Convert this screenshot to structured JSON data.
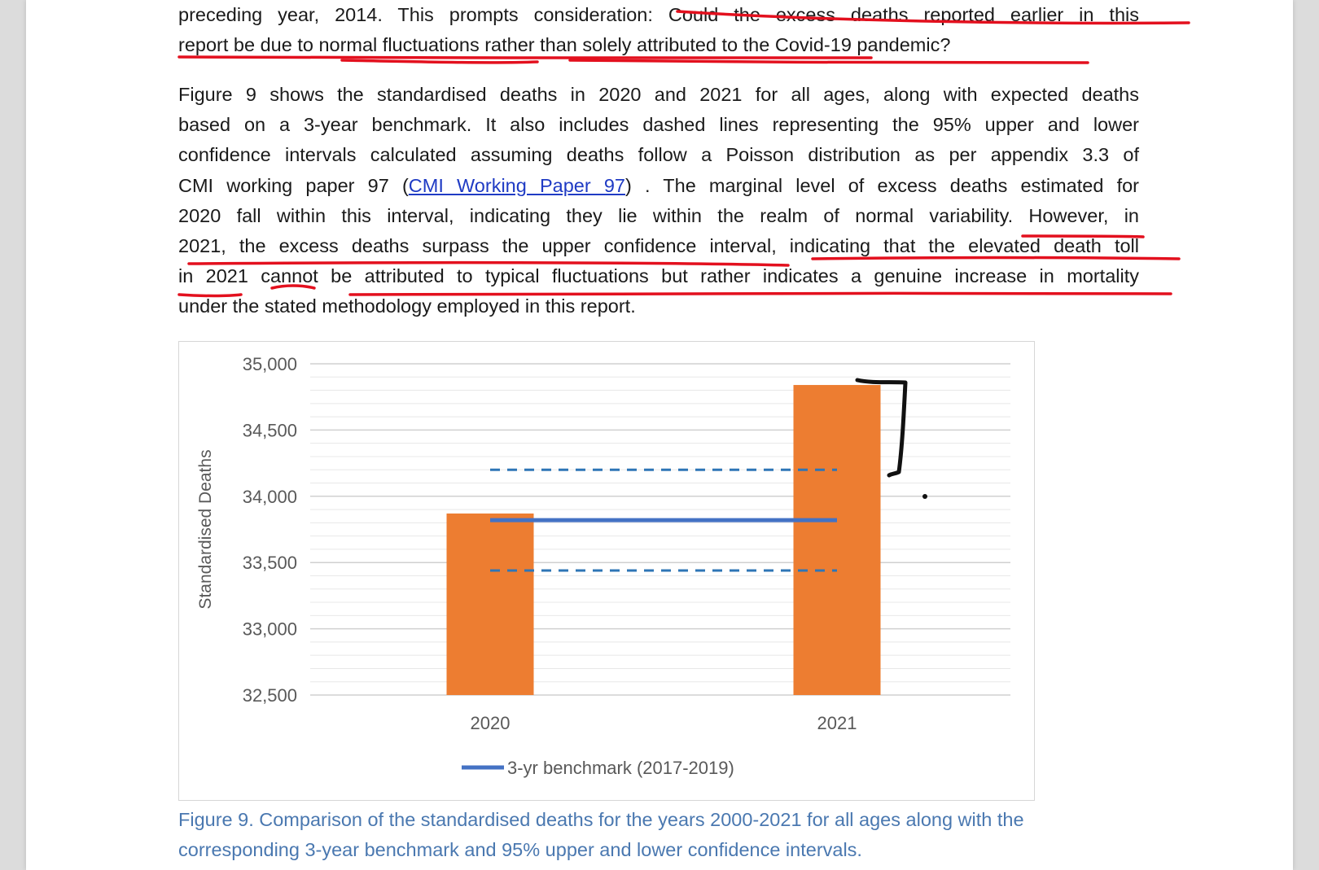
{
  "document": {
    "para1": {
      "lines": [
        "preceding year, 2014. This prompts consideration: Could the excess deaths reported earlier in this",
        "report be due to normal fluctuations rather than solely attributed to the Covid-19 pandemic?"
      ]
    },
    "para2": {
      "lines": [
        "Figure 9 shows the standardised deaths in 2020 and 2021 for all ages, along with expected deaths",
        "based on a 3-year benchmark. It also includes dashed lines representing the 95% upper and lower",
        "confidence intervals calculated assuming deaths follow a Poisson distribution as per appendix 3.3 of"
      ],
      "line4_before_link": "CMI working paper 97 (",
      "link_text": "CMI Working Paper 97",
      "line4_after_link": ") . The marginal level of excess deaths estimated for",
      "lines_rest": [
        "2020 fall within this interval, indicating they lie within the realm of normal variability. However, in",
        "2021, the excess deaths surpass the upper confidence interval, indicating that the elevated death toll",
        "in 2021 cannot be attributed to typical fluctuations but rather indicates a genuine increase in mortality",
        "under the stated methodology employed in this report."
      ]
    },
    "caption": {
      "lines": [
        "Figure 9. Comparison of the standardised deaths for the years 2000-2021 for all ages along with the",
        "corresponding 3-year benchmark and 95% upper and lower confidence intervals."
      ]
    }
  },
  "chart_data": {
    "type": "bar",
    "categories": [
      "2020",
      "2021"
    ],
    "series": [
      {
        "name": "",
        "values": [
          33870,
          34840
        ],
        "color": "#ed7d31"
      }
    ],
    "benchmark": {
      "name": "3-yr benchmark (2017-2019)",
      "value": 33820,
      "color": "#4472c4"
    },
    "confidence_intervals": {
      "upper": 34200,
      "lower": 33440,
      "color": "#2e75b6",
      "style": "dashed"
    },
    "ylabel": "Standardised Deaths",
    "xlabel": "",
    "ylim": [
      32500,
      35000
    ],
    "yticks": [
      32500,
      33000,
      33500,
      34000,
      34500,
      35000
    ],
    "ytick_labels": [
      "32,500",
      "33,000",
      "33,500",
      "34,000",
      "34,500",
      "35,000"
    ],
    "grid": true,
    "legend_position": "bottom"
  },
  "annotations": {
    "ink_color": "#e3101e",
    "bracket_color": "#111111"
  }
}
